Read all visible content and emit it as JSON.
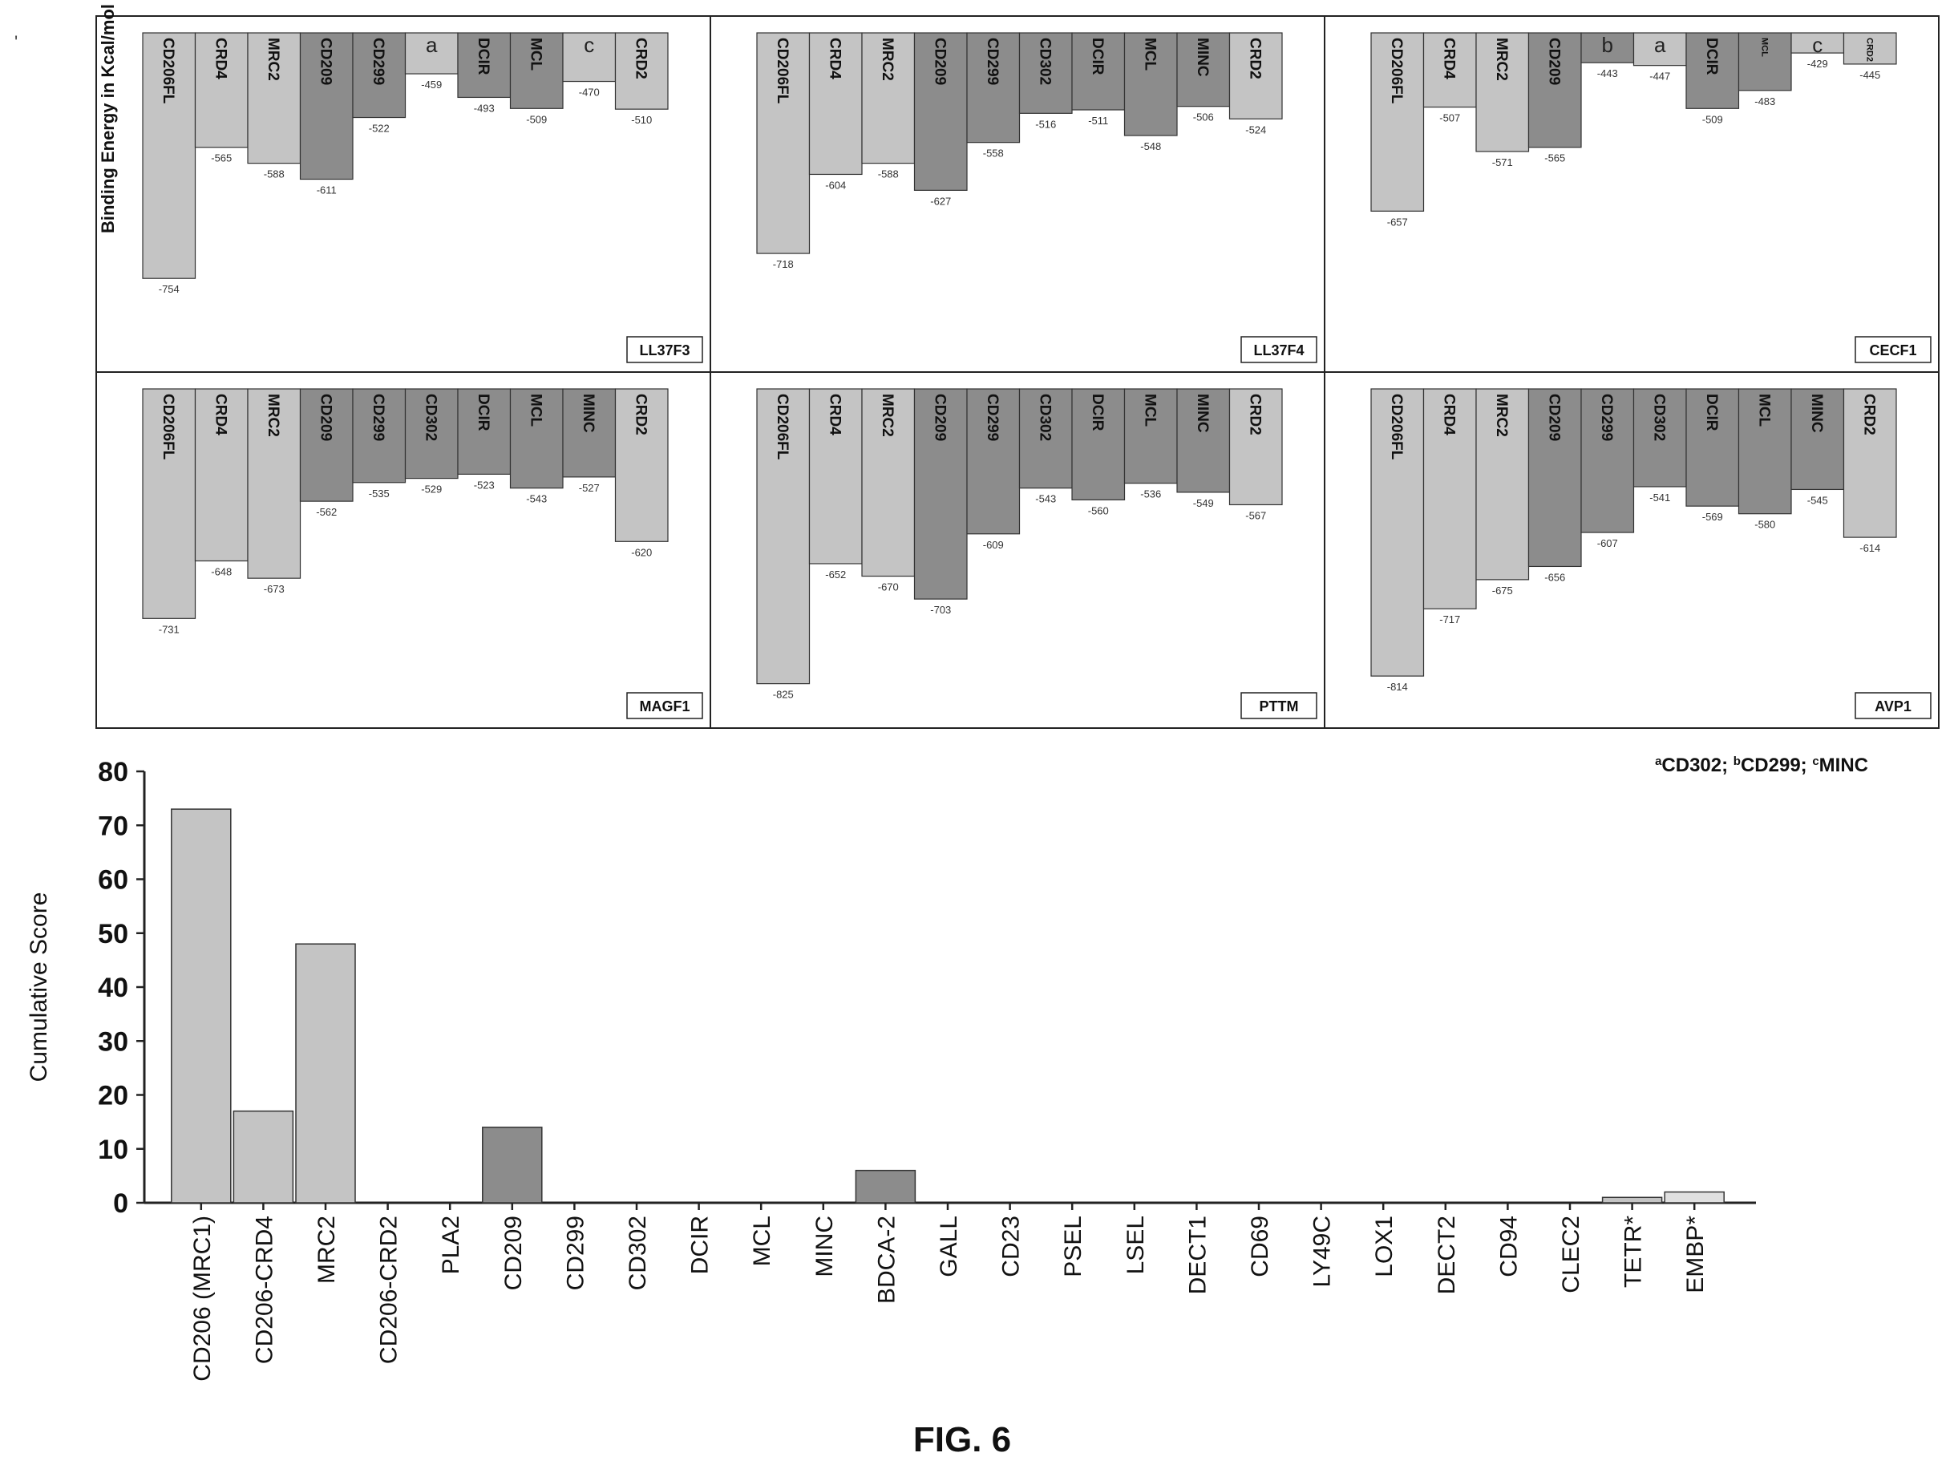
{
  "figure": {
    "caption": "FIG. 6",
    "stray_mark": "'"
  },
  "chart_data": [
    {
      "type": "bar",
      "panel": "LL37F3",
      "ylabel": "Binding Energy in Kcal/mol",
      "categories": [
        "CD206FL",
        "CRD4",
        "MRC2",
        "CD209",
        "CD299",
        "a",
        "DCIR",
        "MCL",
        "c",
        "CRD2"
      ],
      "values": [
        -754,
        -565,
        -588,
        -611,
        -522,
        -459,
        -493,
        -509,
        -470,
        -510
      ],
      "shades": [
        "light",
        "light",
        "light",
        "dark",
        "dark",
        "light",
        "dark",
        "dark",
        "light",
        "light"
      ]
    },
    {
      "type": "bar",
      "panel": "LL37F4",
      "ylabel": "",
      "categories": [
        "CD206FL",
        "CRD4",
        "MRC2",
        "CD209",
        "CD299",
        "CD302",
        "DCIR",
        "MCL",
        "MINC",
        "CRD2"
      ],
      "values": [
        -718,
        -604,
        -588,
        -627,
        -558,
        -516,
        -511,
        -548,
        -506,
        -524
      ],
      "shades": [
        "light",
        "light",
        "light",
        "dark",
        "dark",
        "dark",
        "dark",
        "dark",
        "dark",
        "light"
      ]
    },
    {
      "type": "bar",
      "panel": "CECF1",
      "ylabel": "",
      "categories": [
        "CD206FL",
        "CRD4",
        "MRC2",
        "CD209",
        "b",
        "a",
        "DCIR",
        "MCL",
        "c",
        "CRD2"
      ],
      "values": [
        -657,
        -507,
        -571,
        -565,
        -443,
        -447,
        -509,
        -483,
        -429,
        -445
      ],
      "shades": [
        "light",
        "light",
        "light",
        "dark",
        "dark",
        "light",
        "dark",
        "dark",
        "light",
        "light"
      ]
    },
    {
      "type": "bar",
      "panel": "MAGF1",
      "ylabel": "",
      "categories": [
        "CD206FL",
        "CRD4",
        "MRC2",
        "CD209",
        "CD299",
        "CD302",
        "DCIR",
        "MCL",
        "MINC",
        "CRD2"
      ],
      "values": [
        -731,
        -648,
        -673,
        -562,
        -535,
        -529,
        -523,
        -543,
        -527,
        -620
      ],
      "shades": [
        "light",
        "light",
        "light",
        "dark",
        "dark",
        "dark",
        "dark",
        "dark",
        "dark",
        "light"
      ]
    },
    {
      "type": "bar",
      "panel": "PTTM",
      "ylabel": "",
      "categories": [
        "CD206FL",
        "CRD4",
        "MRC2",
        "CD209",
        "CD299",
        "CD302",
        "DCIR",
        "MCL",
        "MINC",
        "CRD2"
      ],
      "values": [
        -825,
        -652,
        -670,
        -703,
        -609,
        -543,
        -560,
        -536,
        -549,
        -567
      ],
      "value_labels": [
        "-825",
        "-652",
        "-670",
        "-703",
        "-609",
        "-543",
        "-560",
        "-536",
        "-549",
        "-567"
      ],
      "shades": [
        "light",
        "light",
        "light",
        "dark",
        "dark",
        "dark",
        "dark",
        "dark",
        "dark",
        "light"
      ]
    },
    {
      "type": "bar",
      "panel": "AVP1",
      "ylabel": "",
      "categories": [
        "CD206FL",
        "CRD4",
        "MRC2",
        "CD209",
        "CD299",
        "CD302",
        "DCIR",
        "MCL",
        "MINC",
        "CRD2"
      ],
      "values": [
        -814,
        -717,
        -675,
        -656,
        -607,
        -541,
        -569,
        -580,
        -545,
        -614
      ],
      "shades": [
        "light",
        "light",
        "light",
        "dark",
        "dark",
        "dark",
        "dark",
        "dark",
        "dark",
        "light"
      ]
    },
    {
      "type": "bar",
      "ylabel": "Cumulative Score",
      "ylim": [
        0,
        80
      ],
      "yticks": [
        0,
        10,
        20,
        30,
        40,
        50,
        60,
        70,
        80
      ],
      "categories": [
        "CD206 (MRC1)",
        "CD206-CRD4",
        "MRC2",
        "CD206-CRD2",
        "PLA2",
        "CD209",
        "CD299",
        "CD302",
        "DCIR",
        "MCL",
        "MINC",
        "BDCA-2",
        "GALL",
        "CD23",
        "PSEL",
        "LSEL",
        "DECT1",
        "CD69",
        "LY49C",
        "LOX1",
        "DECT2",
        "CD94",
        "CLEC2",
        "TETR*",
        "EMBP*"
      ],
      "values": [
        73,
        17,
        48,
        0,
        0,
        14,
        0,
        0,
        0,
        0,
        0,
        6,
        0,
        0,
        0,
        0,
        0,
        0,
        0,
        0,
        0,
        0,
        0,
        1,
        2
      ],
      "shades": [
        "light",
        "light",
        "light",
        "light",
        "light",
        "dark",
        "light",
        "light",
        "light",
        "light",
        "light",
        "dark",
        "light",
        "light",
        "light",
        "light",
        "light",
        "light",
        "light",
        "light",
        "light",
        "light",
        "light",
        "light",
        "verylight"
      ],
      "footnote": "aCD302; bCD299; cMINC"
    }
  ],
  "colors": {
    "light": "#c4c4c4",
    "dark": "#8c8c8c",
    "verylight": "#e0e0e0",
    "line": "#222222"
  }
}
